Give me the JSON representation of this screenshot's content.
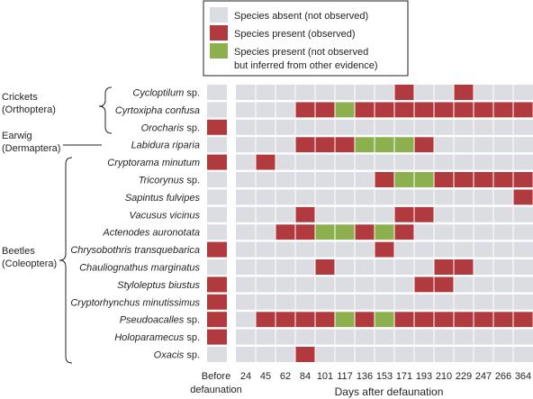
{
  "legend": [
    {
      "label": "Species absent (not observed)",
      "color": "#dcdde2"
    },
    {
      "label": "Species present (observed)",
      "color": "#b03a3e"
    },
    {
      "label_lines": [
        "Species present (not observed",
        "but inferred from other evidence)"
      ],
      "color": "#8db04f"
    }
  ],
  "groups": [
    {
      "lines": [
        "Crickets",
        "(Orthoptera)"
      ]
    },
    {
      "lines": [
        "Earwig",
        "(Dermaptera)"
      ]
    },
    {
      "lines": [
        "Beetles",
        "(Coleoptera)"
      ]
    }
  ],
  "chart_data": {
    "type": "heatmap",
    "status_legend": {
      "0": "Species absent (not observed)",
      "1": "Species present (observed)",
      "2": "Species present (not observed but inferred from other evidence)"
    },
    "before_label": [
      "Before",
      "defaunation"
    ],
    "xlabel": "Days after defaunation",
    "x": [
      "24",
      "45",
      "62",
      "84",
      "101",
      "117",
      "136",
      "153",
      "171",
      "193",
      "210",
      "229",
      "247",
      "266",
      "364"
    ],
    "species": [
      {
        "name": "Cycloptilum",
        "suffix": " sp.",
        "before": 0,
        "days": [
          0,
          0,
          0,
          0,
          0,
          0,
          0,
          0,
          1,
          0,
          0,
          1,
          0,
          0,
          0
        ]
      },
      {
        "name": "Cyrtoxipha confusa",
        "suffix": "",
        "before": 0,
        "days": [
          0,
          0,
          0,
          1,
          1,
          2,
          1,
          1,
          1,
          1,
          1,
          1,
          1,
          1,
          1
        ]
      },
      {
        "name": "Orocharis",
        "suffix": " sp.",
        "before": 1,
        "days": [
          0,
          0,
          0,
          0,
          0,
          0,
          0,
          0,
          0,
          0,
          0,
          0,
          0,
          0,
          0
        ]
      },
      {
        "name": "Labidura riparia",
        "suffix": "",
        "before": 0,
        "days": [
          0,
          0,
          0,
          1,
          1,
          1,
          2,
          2,
          2,
          1,
          0,
          0,
          0,
          0,
          0
        ]
      },
      {
        "name": "Cryptorama minutum",
        "suffix": "",
        "before": 1,
        "days": [
          0,
          1,
          0,
          0,
          0,
          0,
          0,
          0,
          0,
          0,
          0,
          0,
          0,
          0,
          0
        ]
      },
      {
        "name": "Tricorynus",
        "suffix": " sp.",
        "before": 0,
        "days": [
          0,
          0,
          0,
          0,
          0,
          0,
          0,
          1,
          2,
          2,
          1,
          1,
          1,
          1,
          1
        ]
      },
      {
        "name": "Sapintus fulvipes",
        "suffix": "",
        "before": 0,
        "days": [
          0,
          0,
          0,
          0,
          0,
          0,
          0,
          0,
          0,
          0,
          0,
          0,
          0,
          0,
          1
        ]
      },
      {
        "name": "Vacusus vicinus",
        "suffix": "",
        "before": 0,
        "days": [
          0,
          0,
          0,
          1,
          0,
          0,
          0,
          0,
          1,
          1,
          0,
          0,
          0,
          0,
          0
        ]
      },
      {
        "name": "Actenodes auronotata",
        "suffix": "",
        "before": 0,
        "days": [
          0,
          0,
          1,
          1,
          2,
          2,
          1,
          2,
          1,
          0,
          0,
          0,
          0,
          0,
          0
        ]
      },
      {
        "name": "Chrysobothris transquebarica",
        "suffix": "",
        "before": 1,
        "days": [
          0,
          0,
          0,
          0,
          0,
          0,
          0,
          1,
          0,
          0,
          0,
          0,
          0,
          0,
          0
        ]
      },
      {
        "name": "Chauliognathus marginatus",
        "suffix": "",
        "before": 0,
        "days": [
          0,
          0,
          0,
          0,
          1,
          0,
          0,
          0,
          0,
          0,
          1,
          1,
          0,
          0,
          0
        ]
      },
      {
        "name": "Styloleptus biustus",
        "suffix": "",
        "before": 1,
        "days": [
          0,
          0,
          0,
          0,
          0,
          0,
          0,
          0,
          0,
          1,
          1,
          0,
          0,
          0,
          0
        ]
      },
      {
        "name": "Cryptorhynchus minutissimus",
        "suffix": "",
        "before": 1,
        "days": [
          0,
          0,
          0,
          0,
          0,
          0,
          0,
          0,
          0,
          0,
          0,
          0,
          0,
          0,
          0
        ]
      },
      {
        "name": "Pseudoacalles",
        "suffix": " sp.",
        "before": 1,
        "days": [
          0,
          1,
          1,
          1,
          1,
          2,
          1,
          2,
          1,
          1,
          1,
          1,
          1,
          1,
          1
        ]
      },
      {
        "name": "Holoparamecus",
        "suffix": " sp.",
        "before": 1,
        "days": [
          0,
          0,
          0,
          0,
          0,
          0,
          0,
          0,
          0,
          0,
          0,
          0,
          0,
          0,
          0
        ]
      },
      {
        "name": "Oxacis",
        "suffix": " sp.",
        "before": 0,
        "days": [
          0,
          0,
          0,
          1,
          0,
          0,
          0,
          0,
          0,
          0,
          0,
          0,
          0,
          0,
          0
        ]
      }
    ],
    "colors": {
      "absent": "#dcdde2",
      "present": "#b03a3e",
      "inferred": "#8db04f"
    }
  }
}
